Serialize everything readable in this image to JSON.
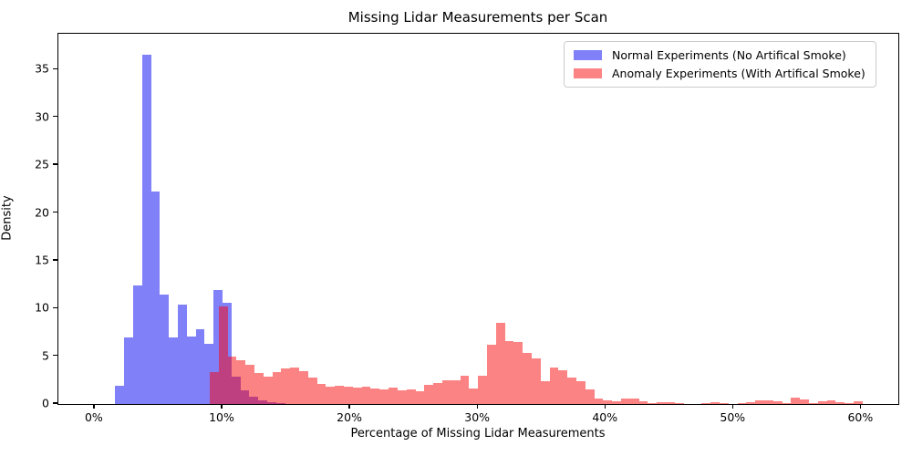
{
  "chart_data": {
    "type": "histogram",
    "title": "Missing Lidar Measurements per Scan",
    "xlabel": "Percentage of Missing Lidar Measurements",
    "ylabel": "Density",
    "x_tick_labels": [
      "0%",
      "10%",
      "20%",
      "30%",
      "40%",
      "50%",
      "60%"
    ],
    "x_tick_values": [
      0,
      10,
      20,
      30,
      40,
      50,
      60
    ],
    "y_tick_values": [
      0,
      5,
      10,
      15,
      20,
      25,
      30,
      35
    ],
    "xlim": [
      -2.85,
      62.9
    ],
    "ylim": [
      0,
      38.76
    ],
    "grid": false,
    "legend_position": "upper right",
    "background_color": "#ffffff",
    "axis_color": "#000000",
    "overlap_color": "#bf4080",
    "series": [
      {
        "name": "Normal Experiments (No Artifical Smoke)",
        "color": "#8080f8",
        "bin_start": 1.6,
        "bin_width": 0.7,
        "densities": [
          1.9,
          7.0,
          12.4,
          36.6,
          22.2,
          11.5,
          7.0,
          10.4,
          7.1,
          7.8,
          6.3,
          11.9,
          10.6,
          2.9,
          1.4,
          0.8,
          0.4,
          0.2,
          0.1
        ]
      },
      {
        "name": "Anomaly Experiments (With Artifical Smoke)",
        "color": "#fc8383",
        "bin_start": 9.0,
        "bin_width": 0.7,
        "densities": [
          3.3,
          10.2,
          5.0,
          4.6,
          4.1,
          3.2,
          2.9,
          3.3,
          3.7,
          3.8,
          3.4,
          2.8,
          2.1,
          1.8,
          1.9,
          1.8,
          1.7,
          1.8,
          1.6,
          1.5,
          1.7,
          1.4,
          1.5,
          1.3,
          2.0,
          2.2,
          2.45,
          2.45,
          3.0,
          1.6,
          3.0,
          6.2,
          8.5,
          6.6,
          6.5,
          5.3,
          4.8,
          2.4,
          3.8,
          3.5,
          2.8,
          2.4,
          1.5,
          0.6,
          0.4,
          0.3,
          0.55,
          0.6,
          0.25,
          0.1,
          0.15,
          0.2,
          0.05,
          0,
          0,
          0.05,
          0.2,
          0.05,
          0,
          0.05,
          0.2,
          0.35,
          0.4,
          0.3,
          0.1,
          0.65,
          0.45,
          0.1,
          0.3,
          0.35,
          0.2,
          0.05,
          0.3
        ]
      }
    ]
  }
}
